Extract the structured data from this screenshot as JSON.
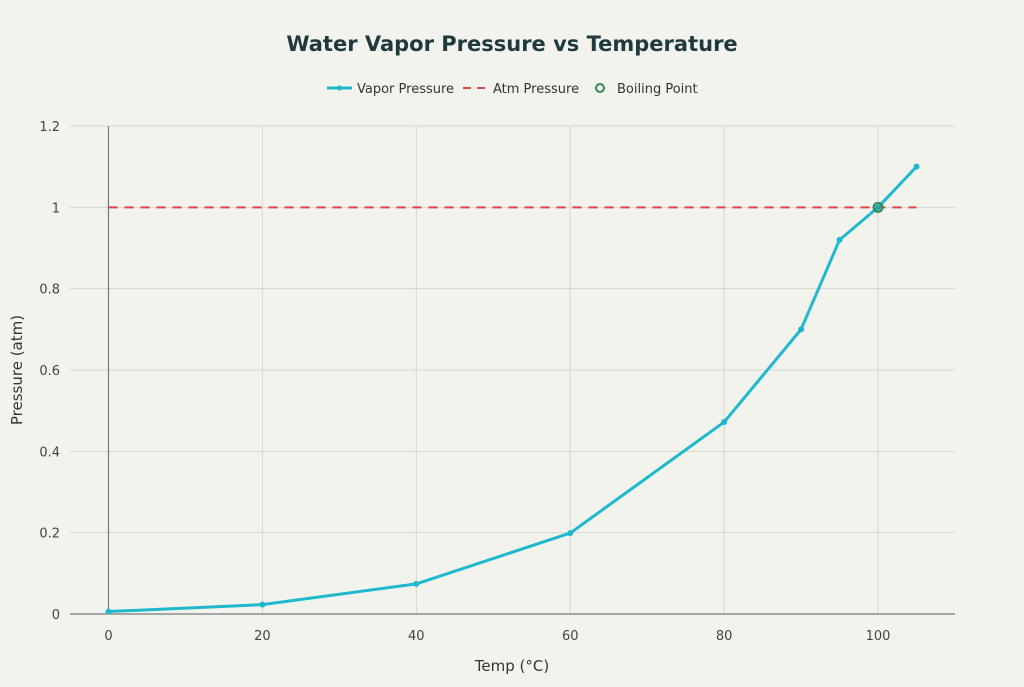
{
  "chart_data": {
    "type": "line",
    "title": "Water Vapor Pressure vs Temperature",
    "xlabel": "Temp (°C)",
    "ylabel": "Pressure (atm)",
    "xlim": [
      -5,
      110
    ],
    "ylim": [
      0,
      1.2
    ],
    "xticks": [
      0,
      20,
      40,
      60,
      80,
      100
    ],
    "yticks": [
      0,
      0.2,
      0.4,
      0.6,
      0.8,
      1,
      1.2
    ],
    "grid": true,
    "legend_position": "top-center",
    "series": [
      {
        "name": "Vapor Pressure",
        "style": "line+markers",
        "color": "#1fb8cd",
        "x": [
          0,
          20,
          40,
          60,
          80,
          90,
          95,
          100,
          105
        ],
        "y": [
          0.006,
          0.023,
          0.074,
          0.199,
          0.472,
          0.7,
          0.92,
          1.0,
          1.1
        ]
      },
      {
        "name": "Atm Pressure",
        "style": "dashed",
        "color": "#db4545",
        "x": [
          0,
          105
        ],
        "y": [
          1,
          1
        ]
      },
      {
        "name": "Boiling Point",
        "style": "marker",
        "color": "#2e8b57",
        "x": [
          100
        ],
        "y": [
          1
        ]
      }
    ]
  }
}
